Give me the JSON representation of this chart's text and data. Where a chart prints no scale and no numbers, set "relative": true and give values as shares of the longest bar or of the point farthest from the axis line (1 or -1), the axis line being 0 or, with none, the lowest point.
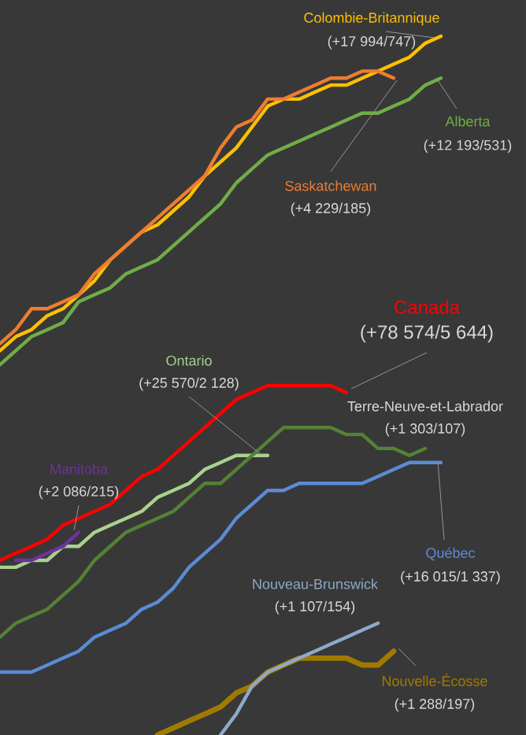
{
  "chart_data": {
    "type": "line",
    "relative": true,
    "categories": [
      null,
      null,
      null,
      null,
      null,
      null,
      null,
      null,
      null,
      null,
      null,
      null,
      null,
      null,
      null,
      null,
      null,
      null,
      null,
      null,
      null,
      null,
      null,
      null,
      null,
      null,
      null,
      null,
      null
    ],
    "series": [
      {
        "name": "Colombie-Britannique",
        "color": "#ffc000",
        "values": [
          0.55,
          0.57,
          0.58,
          0.6,
          0.61,
          0.63,
          0.65,
          0.68,
          0.7,
          0.72,
          0.73,
          0.75,
          0.77,
          0.8,
          0.82,
          0.84,
          0.87,
          0.9,
          0.91,
          0.91,
          0.92,
          0.93,
          0.93,
          0.94,
          0.95,
          0.96,
          0.97,
          0.99,
          1.0
        ]
      },
      {
        "name": "Saskatchewan",
        "color": "#ed7d31",
        "values": [
          0.56,
          0.58,
          0.61,
          0.61,
          0.62,
          0.63,
          0.66,
          0.68,
          0.7,
          0.72,
          0.74,
          0.76,
          0.78,
          0.8,
          0.84,
          0.87,
          0.88,
          0.91,
          0.91,
          0.92,
          0.93,
          0.94,
          0.94,
          0.95,
          0.95,
          0.94,
          null,
          null,
          null
        ]
      },
      {
        "name": "Alberta",
        "color": "#70ad47",
        "values": [
          0.53,
          0.55,
          0.57,
          0.58,
          0.59,
          0.62,
          0.63,
          0.64,
          0.66,
          0.67,
          0.68,
          0.7,
          0.72,
          0.74,
          0.76,
          0.79,
          0.81,
          0.83,
          0.84,
          0.85,
          0.86,
          0.87,
          0.88,
          0.89,
          0.89,
          0.9,
          0.91,
          0.93,
          0.94
        ]
      },
      {
        "name": "Canada",
        "color": "#ff0000",
        "values": [
          0.25,
          0.26,
          0.27,
          0.28,
          0.3,
          0.31,
          0.32,
          0.33,
          0.35,
          0.37,
          0.38,
          0.4,
          0.42,
          0.44,
          0.46,
          0.48,
          0.49,
          0.5,
          0.5,
          0.5,
          0.5,
          0.5,
          0.49,
          null,
          null,
          null,
          null,
          null,
          null
        ]
      },
      {
        "name": "Ontario",
        "color": "#a9d18e",
        "values": [
          0.24,
          0.24,
          0.25,
          0.25,
          0.27,
          0.27,
          0.29,
          0.3,
          0.31,
          0.32,
          0.34,
          0.35,
          0.36,
          0.38,
          0.39,
          0.4,
          0.4,
          0.4,
          null,
          null,
          null,
          null,
          null,
          null,
          null,
          null,
          null,
          null,
          null
        ]
      },
      {
        "color": "#548235",
        "values": [
          0.14,
          0.16,
          0.17,
          0.18,
          0.2,
          0.22,
          0.25,
          0.27,
          0.29,
          0.3,
          0.31,
          0.32,
          0.34,
          0.36,
          0.36,
          0.38,
          0.4,
          0.42,
          0.44,
          0.44,
          0.44,
          0.44,
          0.43,
          0.43,
          0.41,
          0.41,
          0.4,
          0.41,
          null
        ]
      },
      {
        "name": "Manitoba",
        "color": "#7030a0",
        "values": [
          null,
          0.25,
          0.25,
          0.26,
          0.27,
          0.29,
          null,
          null,
          null,
          null,
          null,
          null,
          null,
          null,
          null,
          null,
          null,
          null,
          null,
          null,
          null,
          null,
          null,
          null,
          null,
          null,
          null,
          null,
          null
        ]
      },
      {
        "name": "Québec",
        "color": "#5b8bd6",
        "values": [
          0.09,
          0.09,
          0.09,
          0.1,
          0.11,
          0.12,
          0.14,
          0.15,
          0.16,
          0.18,
          0.19,
          0.21,
          0.24,
          0.26,
          0.28,
          0.31,
          0.33,
          0.35,
          0.35,
          0.36,
          0.36,
          0.36,
          0.36,
          0.36,
          0.37,
          0.38,
          0.39,
          0.39,
          0.39
        ]
      },
      {
        "name": "Nouvelle-Écosse",
        "color": "#a07a00",
        "values": [
          null,
          null,
          null,
          null,
          null,
          null,
          null,
          null,
          null,
          null,
          0.0,
          0.01,
          0.02,
          0.03,
          0.04,
          0.06,
          0.07,
          0.09,
          0.1,
          0.11,
          0.11,
          0.11,
          0.11,
          0.1,
          0.1,
          0.12,
          null,
          null,
          null
        ]
      },
      {
        "name": "Nouveau-Brunswick",
        "color": "#8ea9c8",
        "values": [
          null,
          null,
          null,
          null,
          null,
          null,
          null,
          null,
          null,
          null,
          null,
          null,
          null,
          null,
          0.0,
          0.03,
          0.07,
          0.09,
          0.1,
          0.11,
          0.12,
          0.13,
          0.14,
          0.15,
          0.16,
          null,
          null,
          null,
          null
        ]
      }
    ],
    "annotations": [
      "(+17 994/747)",
      "(+4 229/185)",
      "(+12 193/531)",
      "(+78 574/5 644)",
      "(+25 570/2 128)",
      "(+2 086/215)",
      "(+16 015/1 337)",
      "(+1 288/197)",
      "(+1 107/154)",
      "Terre-Neuve-et-Labrador",
      "(+1 303/107)"
    ]
  }
}
